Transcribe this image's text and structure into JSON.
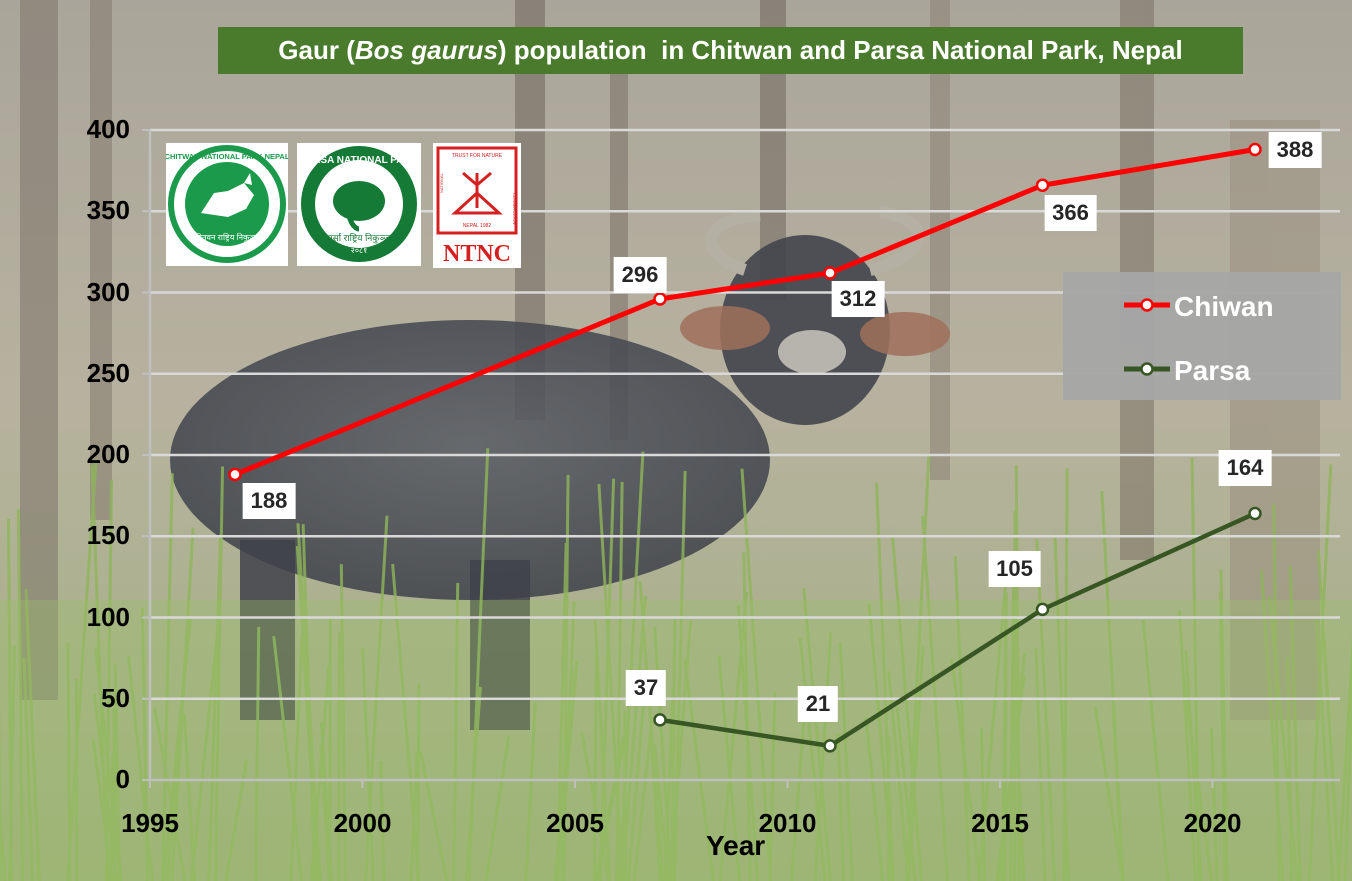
{
  "chart_data": {
    "type": "line",
    "title_prefix": "Gaur (",
    "title_italic": "Bos gaurus",
    "title_suffix": ") population  in Chitwan and Parsa National Park, Nepal",
    "xlabel": "Year",
    "ylabel": "",
    "xlim": [
      1995,
      2023
    ],
    "ylim": [
      0,
      400
    ],
    "x_ticks": [
      "1995",
      "2000",
      "2005",
      "2010",
      "2015",
      "2020"
    ],
    "y_ticks": [
      "0",
      "50",
      "100",
      "150",
      "200",
      "250",
      "300",
      "350",
      "400"
    ],
    "grid": true,
    "legend_position": "right",
    "series": [
      {
        "name": "Chiwan",
        "color": "#ff0000",
        "x": [
          1997,
          2007,
          2011,
          2016,
          2021
        ],
        "y": [
          188,
          296,
          312,
          366,
          388
        ],
        "labels": [
          "188",
          "296",
          "312",
          "366",
          "388"
        ]
      },
      {
        "name": "Parsa",
        "color": "#375623",
        "x": [
          2007,
          2011,
          2016,
          2021
        ],
        "y": [
          37,
          21,
          105,
          164
        ],
        "labels": [
          "37",
          "21",
          "105",
          "164"
        ]
      }
    ]
  },
  "logos": {
    "chitwan": {
      "ring_text": "CHITWAN NATIONAL PARK NEPAL",
      "bottom_text": "चितवन राष्ट्रिय निकुञ्ज"
    },
    "parsa": {
      "ring_text": "PARSA NATIONAL PARK",
      "bottom_text": "पर्सा राष्ट्रिय निकुञ्ज",
      "year": "२०८१"
    },
    "ntnc": {
      "ring_text": "TRUST FOR NATURE",
      "side_left": "NATIONAL",
      "side_right": "CONSERVATION",
      "bottom_small": "NEPAL 1982",
      "abbr": "NTNC"
    }
  },
  "colors": {
    "title_bg": "#4a7a2c",
    "legend_bg": "#a6a6a6"
  }
}
